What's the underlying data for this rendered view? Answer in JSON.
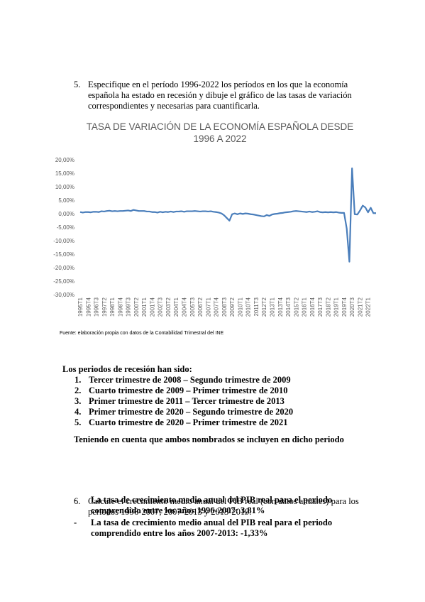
{
  "question5": {
    "number": "5.",
    "text": "Especifique en el período 1996-2022 los períodos en los que la economía española ha estado en recesión y dibuje el gráfico de las tasas de variación correspondientes y necesarias para cuantificarla."
  },
  "chart_data": {
    "type": "line",
    "title": "TASA DE VARIACIÓN DE LA ECONOMÍA ESPAÑOLA DESDE 1996 A 2022",
    "categories": [
      "1995T1",
      null,
      null,
      "1995T4",
      null,
      null,
      "1996T3",
      null,
      null,
      "1997T2",
      null,
      null,
      "1998T1",
      null,
      null,
      "1998T4",
      null,
      null,
      "1999T3",
      null,
      null,
      "2000T2",
      null,
      null,
      "2001T1",
      null,
      null,
      "2001T4",
      null,
      null,
      "2002T3",
      null,
      null,
      "2003T2",
      null,
      null,
      "2004T1",
      null,
      null,
      "2004T4",
      null,
      null,
      "2005T3",
      null,
      null,
      "2006T2",
      null,
      null,
      "2007T1",
      null,
      null,
      "2007T4",
      null,
      null,
      "2008T3",
      null,
      null,
      "2009T2",
      null,
      null,
      "2010T1",
      null,
      null,
      "2010T4",
      null,
      null,
      "2011T3",
      null,
      null,
      "2012T2",
      null,
      null,
      "2013T1",
      null,
      null,
      "2013T4",
      null,
      null,
      "2014T3",
      null,
      null,
      "2015T2",
      null,
      null,
      "2016T1",
      null,
      null,
      "2016T4",
      null,
      null,
      "2017T3",
      null,
      null,
      "2018T2",
      null,
      null,
      "2019T1",
      null,
      null,
      "2019T4",
      null,
      null,
      "2020T3",
      null,
      null,
      "2021T2",
      null,
      null,
      "2022T1",
      null,
      null,
      null
    ],
    "series": [
      {
        "color": "#4a7ebb",
        "values": [
          0.6,
          0.4,
          0.6,
          0.6,
          0.5,
          0.7,
          0.7,
          0.6,
          0.9,
          0.8,
          1.0,
          1.1,
          0.9,
          1.0,
          0.9,
          1.0,
          1.0,
          1.1,
          1.2,
          1.0,
          1.4,
          1.2,
          1.0,
          1.0,
          1.0,
          0.8,
          0.8,
          0.6,
          0.6,
          0.4,
          0.7,
          0.5,
          0.7,
          0.6,
          0.8,
          0.6,
          0.8,
          0.8,
          0.9,
          0.7,
          0.9,
          0.9,
          0.9,
          1.0,
          0.9,
          0.8,
          0.9,
          0.9,
          0.8,
          0.9,
          0.7,
          0.6,
          0.4,
          0.1,
          -0.6,
          -1.6,
          -2.6,
          -0.2,
          0.1,
          -0.2,
          0.1,
          -0.1,
          0.1,
          0.0,
          -0.2,
          -0.3,
          -0.5,
          -0.7,
          -0.9,
          -1.0,
          -0.5,
          -0.8,
          -0.3,
          -0.1,
          0.0,
          0.2,
          0.3,
          0.5,
          0.6,
          0.7,
          0.9,
          1.0,
          0.9,
          0.8,
          0.7,
          0.6,
          0.8,
          0.6,
          0.7,
          0.9,
          0.6,
          0.5,
          0.6,
          0.5,
          0.6,
          0.5,
          0.6,
          0.4,
          0.3,
          0.3,
          -5.5,
          -17.8,
          16.8,
          -0.2,
          -0.3,
          1.2,
          3.0,
          2.3,
          0.5,
          2.2,
          0.2,
          0.2
        ]
      }
    ],
    "ylim": [
      -30,
      20
    ],
    "yticks": [
      {
        "value": 20,
        "label": "20,00%"
      },
      {
        "value": 15,
        "label": "15,00%"
      },
      {
        "value": 10,
        "label": "10,00%"
      },
      {
        "value": 5,
        "label": "5,00%"
      },
      {
        "value": 0,
        "label": "0,00%"
      },
      {
        "value": -5,
        "label": "-5,00%"
      },
      {
        "value": -10,
        "label": "-10,00%"
      },
      {
        "value": -15,
        "label": "-15,00%"
      },
      {
        "value": -20,
        "label": "-20,00%"
      },
      {
        "value": -25,
        "label": "-25,00%"
      },
      {
        "value": -30,
        "label": "-30,00%"
      }
    ],
    "grid": false,
    "source": "Fuente: elaboración propia con datos de la Contabilidad Trimestral del INE"
  },
  "recessions": {
    "heading": "Los periodos de recesión han sido:",
    "items": [
      {
        "number": "1.",
        "text": "Tercer trimestre de 2008 – Segundo trimestre de 2009"
      },
      {
        "number": "2.",
        "text": "Cuarto trimestre de 2009 – Primer trimestre de 2010"
      },
      {
        "number": "3.",
        "text": "Primer trimestre de 2011 – Tercer trimestre de 2013"
      },
      {
        "number": "4.",
        "text": "Primer trimestre de 2020 – Segundo trimestre de 2020"
      },
      {
        "number": "5.",
        "text": "Cuarto trimestre de 2020 – Primer trimestre de 2021"
      }
    ],
    "note": "Teniendo en cuenta que ambos nombrados se incluyen en dicho periodo"
  },
  "question6": {
    "number": "6.",
    "text": "Calcule el crecimiento medio anual del PIB real (con datos anuales) para los periodos 1996-2007, 2007-2013 y 2013-2019.",
    "answers": [
      {
        "marker": "-",
        "text": "La tasa de crecimiento medio anual del PIB real para el periodo comprendido entre los años 1996-2007: 3,81%"
      },
      {
        "marker": "-",
        "text": "La tasa de crecimiento medio anual del PIB real para el periodo comprendido entre los años 2007-2013: -1,33%"
      }
    ]
  }
}
